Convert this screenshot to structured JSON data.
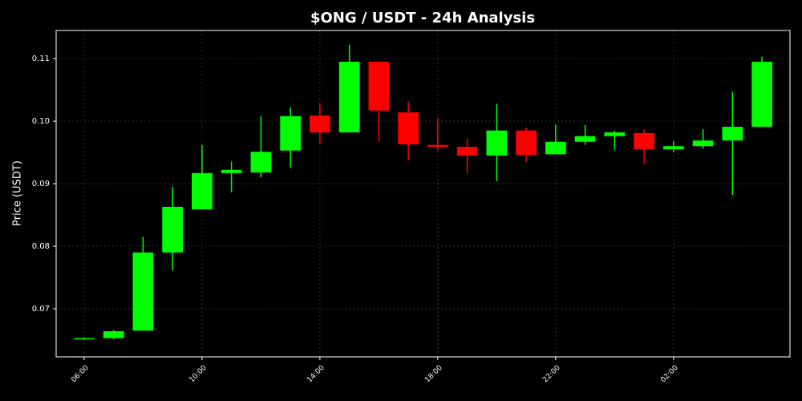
{
  "chart_data": {
    "type": "candlestick",
    "title": "$ONG / USDT - 24h Analysis",
    "y_label": "Price (USDT)",
    "categories": [
      "06:00",
      null,
      null,
      null,
      "10:00",
      null,
      null,
      null,
      "14:00",
      null,
      null,
      null,
      "18:00",
      null,
      null,
      null,
      "22:00",
      null,
      null,
      null,
      "02:00",
      null,
      null,
      null
    ],
    "open": [
      0.0652,
      0.0653,
      0.0665,
      0.079,
      0.0859,
      0.0917,
      0.0918,
      0.0953,
      0.1009,
      0.0982,
      0.1095,
      0.1014,
      0.0962,
      0.0959,
      0.0945,
      0.0985,
      0.0947,
      0.0967,
      0.0976,
      0.0981,
      0.0955,
      0.096,
      0.0969,
      0.0991
    ],
    "high": [
      0.0654,
      0.0666,
      0.0815,
      0.0895,
      0.0962,
      0.0935,
      0.1008,
      0.1022,
      0.1029,
      0.1122,
      0.1095,
      0.1031,
      0.1005,
      0.0972,
      0.1028,
      0.099,
      0.0994,
      0.0994,
      0.0985,
      0.0987,
      0.0968,
      0.0987,
      0.1047,
      0.1103
    ],
    "low": [
      0.065,
      0.0651,
      0.0665,
      0.0762,
      0.0859,
      0.0886,
      0.091,
      0.0926,
      0.0963,
      0.0982,
      0.0967,
      0.0937,
      0.0953,
      0.0917,
      0.0904,
      0.0935,
      0.0947,
      0.0962,
      0.0954,
      0.0932,
      0.095,
      0.0956,
      0.0882,
      0.0991
    ],
    "close": [
      0.0653,
      0.0664,
      0.079,
      0.0863,
      0.0917,
      0.0922,
      0.0951,
      0.1008,
      0.0982,
      0.1095,
      0.1017,
      0.0963,
      0.0959,
      0.0945,
      0.0985,
      0.0946,
      0.0967,
      0.0976,
      0.0982,
      0.0955,
      0.096,
      0.0969,
      0.0991,
      0.1095
    ],
    "up_color": "#00ff00",
    "down_color": "#ff0000",
    "ylim": [
      0.0623,
      0.1145
    ],
    "yticks": [
      0.07,
      0.08,
      0.09,
      {
        "value": 0.1,
        "label": "0.10"
      },
      0.11
    ],
    "grid": true
  }
}
